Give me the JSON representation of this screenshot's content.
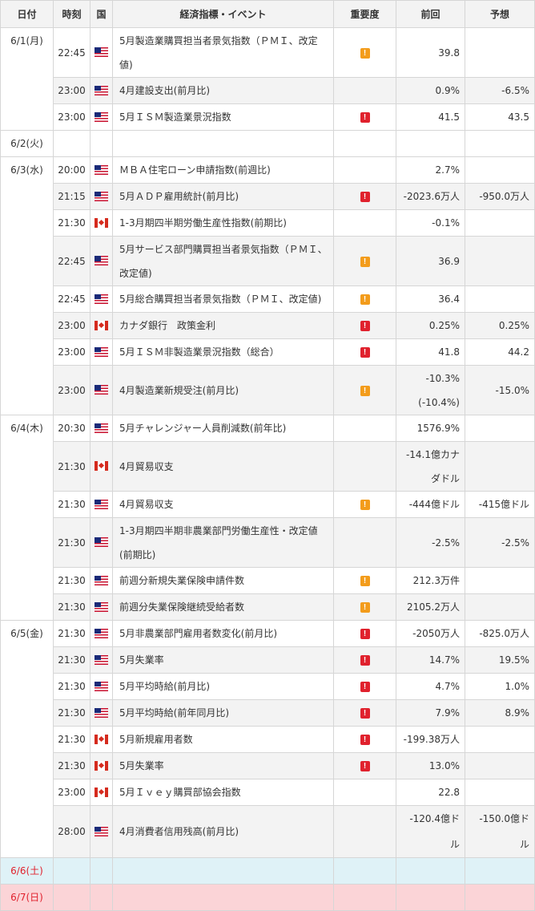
{
  "headers": [
    "日付",
    "時刻",
    "国",
    "経済指標・イベント",
    "重要度",
    "前回",
    "予想"
  ],
  "days": [
    {
      "date": "6/1(月)",
      "events": [
        {
          "time": "22:45",
          "country": "us",
          "lines": [
            "5月製造業購買担当者景気指数（ＰＭＩ、改定",
            "値)"
          ],
          "importance": "mid",
          "prev": [
            "39.8"
          ],
          "forecast": ""
        },
        {
          "time": "23:00",
          "country": "us",
          "lines": [
            "4月建設支出(前月比)"
          ],
          "importance": "",
          "prev": [
            "0.9%"
          ],
          "forecast": "-6.5%"
        },
        {
          "time": "23:00",
          "country": "us",
          "lines": [
            "5月ＩＳＭ製造業景況指数"
          ],
          "importance": "high",
          "prev": [
            "41.5"
          ],
          "forecast": "43.5"
        }
      ]
    },
    {
      "date": "6/2(火)",
      "events": []
    },
    {
      "date": "6/3(水)",
      "events": [
        {
          "time": "20:00",
          "country": "us",
          "lines": [
            "ＭＢＡ住宅ローン申請指数(前週比)"
          ],
          "importance": "",
          "prev": [
            "2.7%"
          ],
          "forecast": ""
        },
        {
          "time": "21:15",
          "country": "us",
          "lines": [
            "5月ＡＤＰ雇用統計(前月比)"
          ],
          "importance": "high",
          "prev": [
            "-2023.6万人"
          ],
          "forecast": "-950.0万人"
        },
        {
          "time": "21:30",
          "country": "ca",
          "lines": [
            "1-3月期四半期労働生産性指数(前期比)"
          ],
          "importance": "",
          "prev": [
            "-0.1%"
          ],
          "forecast": ""
        },
        {
          "time": "22:45",
          "country": "us",
          "lines": [
            "5月サービス部門購買担当者景気指数（ＰＭＩ、",
            "改定値)"
          ],
          "importance": "mid",
          "prev": [
            "36.9"
          ],
          "forecast": ""
        },
        {
          "time": "22:45",
          "country": "us",
          "lines": [
            "5月総合購買担当者景気指数（ＰＭＩ、改定値)"
          ],
          "importance": "mid",
          "prev": [
            "36.4"
          ],
          "forecast": ""
        },
        {
          "time": "23:00",
          "country": "ca",
          "lines": [
            "カナダ銀行　政策金利"
          ],
          "importance": "high",
          "prev": [
            "0.25%"
          ],
          "forecast": "0.25%"
        },
        {
          "time": "23:00",
          "country": "us",
          "lines": [
            "5月ＩＳＭ非製造業景況指数（総合）"
          ],
          "importance": "high",
          "prev": [
            "41.8"
          ],
          "forecast": "44.2"
        },
        {
          "time": "23:00",
          "country": "us",
          "lines": [
            "4月製造業新規受注(前月比)"
          ],
          "importance": "mid",
          "prev": [
            "-10.3%",
            "(-10.4%)"
          ],
          "forecast": "-15.0%"
        }
      ]
    },
    {
      "date": "6/4(木)",
      "events": [
        {
          "time": "20:30",
          "country": "us",
          "lines": [
            "5月チャレンジャー人員削減数(前年比)"
          ],
          "importance": "",
          "prev": [
            "1576.9%"
          ],
          "forecast": ""
        },
        {
          "time": "21:30",
          "country": "ca",
          "lines": [
            "4月貿易収支"
          ],
          "importance": "",
          "prev": [
            "-14.1億カナ",
            "ダドル"
          ],
          "forecast": ""
        },
        {
          "time": "21:30",
          "country": "us",
          "lines": [
            "4月貿易収支"
          ],
          "importance": "mid",
          "prev": [
            "-444億ドル"
          ],
          "forecast": "-415億ドル"
        },
        {
          "time": "21:30",
          "country": "us",
          "lines": [
            "1-3月期四半期非農業部門労働生産性・改定値",
            "(前期比)"
          ],
          "importance": "",
          "prev": [
            "-2.5%"
          ],
          "forecast": "-2.5%"
        },
        {
          "time": "21:30",
          "country": "us",
          "lines": [
            "前週分新規失業保険申請件数"
          ],
          "importance": "mid",
          "prev": [
            "212.3万件"
          ],
          "forecast": ""
        },
        {
          "time": "21:30",
          "country": "us",
          "lines": [
            "前週分失業保険継続受給者数"
          ],
          "importance": "mid",
          "prev": [
            "2105.2万人"
          ],
          "forecast": ""
        }
      ]
    },
    {
      "date": "6/5(金)",
      "events": [
        {
          "time": "21:30",
          "country": "us",
          "lines": [
            "5月非農業部門雇用者数変化(前月比)"
          ],
          "importance": "high",
          "prev": [
            "-2050万人"
          ],
          "forecast": "-825.0万人"
        },
        {
          "time": "21:30",
          "country": "us",
          "lines": [
            "5月失業率"
          ],
          "importance": "high",
          "prev": [
            "14.7%"
          ],
          "forecast": "19.5%"
        },
        {
          "time": "21:30",
          "country": "us",
          "lines": [
            "5月平均時給(前月比)"
          ],
          "importance": "high",
          "prev": [
            "4.7%"
          ],
          "forecast": "1.0%"
        },
        {
          "time": "21:30",
          "country": "us",
          "lines": [
            "5月平均時給(前年同月比)"
          ],
          "importance": "high",
          "prev": [
            "7.9%"
          ],
          "forecast": "8.9%"
        },
        {
          "time": "21:30",
          "country": "ca",
          "lines": [
            "5月新規雇用者数"
          ],
          "importance": "high",
          "prev": [
            "-199.38万人"
          ],
          "forecast": ""
        },
        {
          "time": "21:30",
          "country": "ca",
          "lines": [
            "5月失業率"
          ],
          "importance": "high",
          "prev": [
            "13.0%"
          ],
          "forecast": ""
        },
        {
          "time": "23:00",
          "country": "ca",
          "lines": [
            "5月Ｉｖｅｙ購買部協会指数"
          ],
          "importance": "",
          "prev": [
            "22.8"
          ],
          "forecast": ""
        },
        {
          "time": "28:00",
          "country": "us",
          "lines": [
            "4月消費者信用残高(前月比)"
          ],
          "importance": "",
          "prev": [
            "-120.4億ドル"
          ],
          "forecast": "-150.0億ドル"
        }
      ]
    },
    {
      "date": "6/6(土)",
      "weekend": "sat",
      "events": []
    },
    {
      "date": "6/7(日)",
      "weekend": "sun",
      "events": []
    }
  ],
  "importance_icon_text": "!",
  "importance_icons": {
    "mid": "exclamation-orange-icon",
    "high": "exclamation-red-icon"
  },
  "country_icons": {
    "us": "us-flag-icon",
    "ca": "canada-flag-icon"
  },
  "colors": {
    "header_bg": "#f3f3f3",
    "alt_row_bg": "#f3f3f3",
    "saturday_bg": "#dff2f7",
    "sunday_bg": "#fbd4d7",
    "weekend_text": "#e0212d",
    "importance_mid": "#f39c1b",
    "importance_high": "#e0212d"
  }
}
